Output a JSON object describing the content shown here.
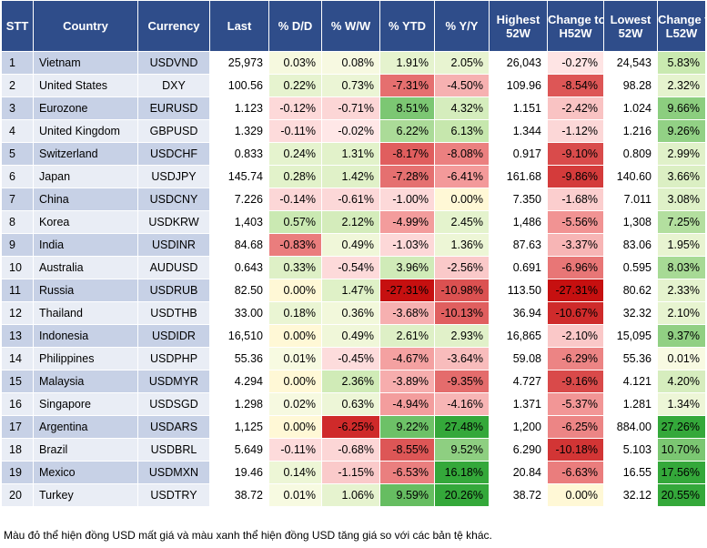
{
  "headers": [
    {
      "label": "STT",
      "sub": ""
    },
    {
      "label": "Country",
      "sub": ""
    },
    {
      "label": "Currency",
      "sub": ""
    },
    {
      "label": "Last",
      "sub": ""
    },
    {
      "label": "% D/D",
      "sub": ""
    },
    {
      "label": "% W/W",
      "sub": ""
    },
    {
      "label": "% YTD",
      "sub": ""
    },
    {
      "label": "% Y/Y",
      "sub": ""
    },
    {
      "label": "Highest",
      "sub": "52W"
    },
    {
      "label": "Change to",
      "sub": "H52W"
    },
    {
      "label": "Lowest",
      "sub": "52W"
    },
    {
      "label": "Change to",
      "sub": "L52W"
    }
  ],
  "rows": [
    [
      "1",
      "Vietnam",
      "USDVND",
      "25,973",
      "0.03%",
      "0.08%",
      "1.91%",
      "2.05%",
      "26,043",
      "-0.27%",
      "24,543",
      "5.83%"
    ],
    [
      "2",
      "United States",
      "DXY",
      "100.56",
      "0.22%",
      "0.73%",
      "-7.31%",
      "-4.50%",
      "109.96",
      "-8.54%",
      "98.28",
      "2.32%"
    ],
    [
      "3",
      "Eurozone",
      "EURUSD",
      "1.123",
      "-0.12%",
      "-0.71%",
      "8.51%",
      "4.32%",
      "1.151",
      "-2.42%",
      "1.024",
      "9.66%"
    ],
    [
      "4",
      "United Kingdom",
      "GBPUSD",
      "1.329",
      "-0.11%",
      "-0.02%",
      "6.22%",
      "6.13%",
      "1.344",
      "-1.12%",
      "1.216",
      "9.26%"
    ],
    [
      "5",
      "Switzerland",
      "USDCHF",
      "0.833",
      "0.24%",
      "1.31%",
      "-8.17%",
      "-8.08%",
      "0.917",
      "-9.10%",
      "0.809",
      "2.99%"
    ],
    [
      "6",
      "Japan",
      "USDJPY",
      "145.74",
      "0.28%",
      "1.42%",
      "-7.28%",
      "-6.41%",
      "161.68",
      "-9.86%",
      "140.60",
      "3.66%"
    ],
    [
      "7",
      "China",
      "USDCNY",
      "7.226",
      "-0.14%",
      "-0.61%",
      "-1.00%",
      "0.00%",
      "7.350",
      "-1.68%",
      "7.011",
      "3.08%"
    ],
    [
      "8",
      "Korea",
      "USDKRW",
      "1,403",
      "0.57%",
      "2.12%",
      "-4.99%",
      "2.45%",
      "1,486",
      "-5.56%",
      "1,308",
      "7.25%"
    ],
    [
      "9",
      "India",
      "USDINR",
      "84.68",
      "-0.83%",
      "0.49%",
      "-1.03%",
      "1.36%",
      "87.63",
      "-3.37%",
      "83.06",
      "1.95%"
    ],
    [
      "10",
      "Australia",
      "AUDUSD",
      "0.643",
      "0.33%",
      "-0.54%",
      "3.96%",
      "-2.56%",
      "0.691",
      "-6.96%",
      "0.595",
      "8.03%"
    ],
    [
      "11",
      "Russia",
      "USDRUB",
      "82.50",
      "0.00%",
      "1.47%",
      "-27.31%",
      "-10.98%",
      "113.50",
      "-27.31%",
      "80.62",
      "2.33%"
    ],
    [
      "12",
      "Thailand",
      "USDTHB",
      "33.00",
      "0.18%",
      "0.36%",
      "-3.68%",
      "-10.13%",
      "36.94",
      "-10.67%",
      "32.32",
      "2.10%"
    ],
    [
      "13",
      "Indonesia",
      "USDIDR",
      "16,510",
      "0.00%",
      "0.49%",
      "2.61%",
      "2.93%",
      "16,865",
      "-2.10%",
      "15,095",
      "9.37%"
    ],
    [
      "14",
      "Philippines",
      "USDPHP",
      "55.36",
      "0.01%",
      "-0.45%",
      "-4.67%",
      "-3.64%",
      "59.08",
      "-6.29%",
      "55.36",
      "0.01%"
    ],
    [
      "15",
      "Malaysia",
      "USDMYR",
      "4.294",
      "0.00%",
      "2.36%",
      "-3.89%",
      "-9.35%",
      "4.727",
      "-9.16%",
      "4.121",
      "4.20%"
    ],
    [
      "16",
      "Singapore",
      "USDSGD",
      "1.298",
      "0.02%",
      "0.63%",
      "-4.94%",
      "-4.16%",
      "1.371",
      "-5.37%",
      "1.281",
      "1.34%"
    ],
    [
      "17",
      "Argentina",
      "USDARS",
      "1,125",
      "0.00%",
      "-6.25%",
      "9.22%",
      "27.48%",
      "1,200",
      "-6.25%",
      "884.00",
      "27.26%"
    ],
    [
      "18",
      "Brazil",
      "USDBRL",
      "5.649",
      "-0.11%",
      "-0.68%",
      "-8.55%",
      "9.52%",
      "6.290",
      "-10.18%",
      "5.103",
      "10.70%"
    ],
    [
      "19",
      "Mexico",
      "USDMXN",
      "19.46",
      "0.14%",
      "-1.15%",
      "-6.53%",
      "16.18%",
      "20.84",
      "-6.63%",
      "16.55",
      "17.56%"
    ],
    [
      "20",
      "Turkey",
      "USDTRY",
      "38.72",
      "0.01%",
      "1.06%",
      "9.59%",
      "20.26%",
      "38.72",
      "0.00%",
      "32.12",
      "20.55%"
    ]
  ],
  "note": "Màu đỏ thể hiện đồng USD mất giá và màu xanh thể hiện đồng USD tăng giá so với các bản tệ khác."
}
